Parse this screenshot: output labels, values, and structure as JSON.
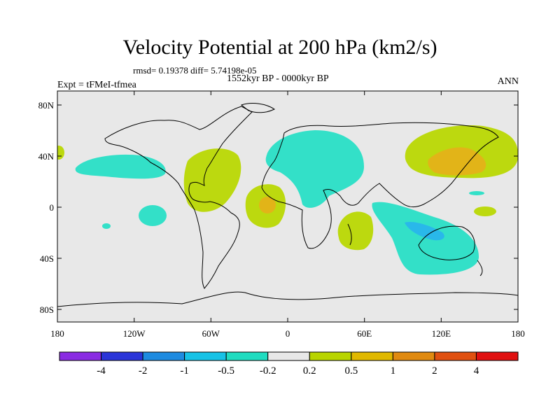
{
  "title": "Velocity Potential at 200 hPa (km2/s)",
  "stats": {
    "rmsd_label": "rmsd=",
    "rmsd": "0.19378",
    "diff_label": "diff=",
    "diff": "5.74198e-05",
    "text": "rmsd= 0.19378 diff= 5.74198e-05"
  },
  "period": "1552kyr BP - 0000kyr BP",
  "experiment": "Expt = tFMeI-tfmea",
  "season": "ANN",
  "axes": {
    "lat_ticks": [
      "80N",
      "40N",
      "0",
      "40S",
      "80S"
    ],
    "lon_ticks": [
      "180",
      "120W",
      "60W",
      "0",
      "60E",
      "120E",
      "180"
    ]
  },
  "colorbar": {
    "labels": [
      "-4",
      "-2",
      "-1",
      "-0.5",
      "-0.2",
      "0.2",
      "0.5",
      "1",
      "2",
      "4"
    ],
    "colors": [
      "#8a2be2",
      "#2a35d8",
      "#1e8be0",
      "#16c2e6",
      "#1fdcc0",
      "#e8e8e8",
      "#b8d400",
      "#e0b800",
      "#e08a10",
      "#e05010",
      "#e01010"
    ]
  },
  "map_colors": {
    "background": "#e8e8e8",
    "negative_02": "#33e0c8",
    "negative_05": "#29b8ea",
    "positive_02": "#bcd90f",
    "positive_05": "#e2b418",
    "positive_1": "#e48a18"
  }
}
